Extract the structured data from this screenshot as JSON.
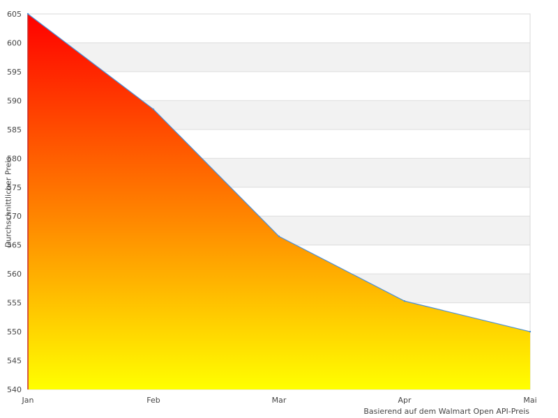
{
  "chart_data": {
    "type": "area",
    "categories": [
      "Jan",
      "Feb",
      "Mar",
      "Apr",
      "Mai"
    ],
    "series": [
      {
        "values": [
          605,
          588.5,
          566.5,
          555.3,
          550
        ]
      }
    ],
    "ylim": [
      540,
      605
    ],
    "yticks": [
      540,
      545,
      550,
      555,
      560,
      565,
      570,
      575,
      580,
      585,
      590,
      595,
      600,
      605
    ],
    "xlabel": "Basierend auf dem Walmart Open API-Preis",
    "ylabel": "Durchschnittlicher Preis",
    "grid": true,
    "legend": "none",
    "colors": {
      "fill_top": "#ff0000",
      "fill_mid": "#ff8800",
      "fill_bottom": "#ffff00",
      "line": "#4a90d9",
      "band": "#f2f2f2",
      "grid": "#dddddd",
      "border": "#d8d8d8"
    }
  }
}
